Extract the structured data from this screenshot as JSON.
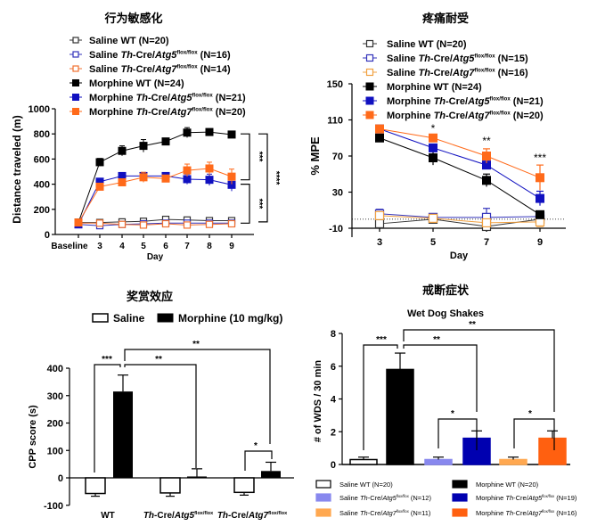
{
  "chart_data": [
    {
      "id": "locomotor",
      "type": "line",
      "title": "行为敏感化",
      "xlabel": "Day",
      "ylabel": "Distance traveled (m)",
      "ylim": [
        0,
        1000
      ],
      "yticks": [
        0,
        200,
        400,
        600,
        800,
        1000
      ],
      "categories": [
        "Baseline",
        "3",
        "4",
        "5",
        "6",
        "7",
        "8",
        "9"
      ],
      "legend_position": "top",
      "series": [
        {
          "name": "Saline WT (N=20)",
          "label_parts": [
            "Saline WT",
            "",
            "",
            "",
            " (N=20)"
          ],
          "color": "#333333",
          "filled": false,
          "values": [
            95,
            95,
            100,
            105,
            120,
            115,
            110,
            110
          ],
          "errors": [
            5,
            5,
            5,
            5,
            6,
            5,
            5,
            5
          ]
        },
        {
          "name": "Saline Th-Cre/Atg5flox/flox (N=16)",
          "label_parts": [
            "Saline ",
            "Th",
            "-Cre/",
            "Atg5",
            " (N=16)"
          ],
          "sup": "flox/flox",
          "color": "#3333bb",
          "filled": false,
          "values": [
            80,
            70,
            80,
            85,
            90,
            90,
            90,
            90
          ],
          "errors": [
            5,
            5,
            5,
            5,
            5,
            5,
            5,
            5
          ]
        },
        {
          "name": "Saline Th-Cre/Atg7flox/flox (N=14)",
          "label_parts": [
            "Saline ",
            "Th",
            "-Cre/",
            "Atg7",
            " (N=14)"
          ],
          "sup": "flox/flox",
          "color": "#f07030",
          "filled": false,
          "values": [
            90,
            90,
            80,
            75,
            85,
            75,
            80,
            85
          ],
          "errors": [
            5,
            5,
            5,
            5,
            5,
            5,
            5,
            5
          ]
        },
        {
          "name": "Morphine WT (N=24)",
          "label_parts": [
            "Morphine WT",
            "",
            "",
            "",
            " (N=24)"
          ],
          "color": "#000000",
          "filled": true,
          "values": [
            95,
            575,
            665,
            705,
            740,
            810,
            815,
            795
          ],
          "errors": [
            8,
            30,
            40,
            50,
            25,
            40,
            25,
            20
          ]
        },
        {
          "name": "Morphine Th-Cre/Atg5flox/flox (N=21)",
          "label_parts": [
            "Morphine ",
            "Th",
            "-Cre/",
            "Atg5",
            " (N=21)"
          ],
          "sup": "flox/flox",
          "color": "#1010c0",
          "filled": true,
          "values": [
            80,
            420,
            465,
            465,
            465,
            440,
            435,
            395
          ],
          "errors": [
            5,
            20,
            20,
            25,
            25,
            40,
            45,
            50
          ]
        },
        {
          "name": "Morphine Th-Cre/Atg7flox/flox (N=20)",
          "label_parts": [
            "Morphine ",
            "Th",
            "-Cre/",
            "Atg7",
            " (N=20)"
          ],
          "sup": "flox/flox",
          "color": "#ff6a1a",
          "filled": true,
          "values": [
            95,
            380,
            415,
            455,
            445,
            510,
            525,
            460
          ],
          "errors": [
            5,
            20,
            20,
            40,
            20,
            50,
            50,
            60
          ]
        }
      ],
      "annotations": [
        {
          "text": "***",
          "between": [
            "Morphine WT",
            "Morphine Th-Cre/Atg7"
          ]
        },
        {
          "text": "***",
          "between": [
            "Morphine Th-Cre/Atg5",
            "Saline"
          ]
        },
        {
          "text": "****",
          "between": [
            "Morphine WT",
            "Saline"
          ]
        }
      ]
    },
    {
      "id": "tolerance",
      "type": "line",
      "title": "疼痛耐受",
      "xlabel": "Day",
      "ylabel": "% MPE",
      "ylim": [
        -10,
        150
      ],
      "yticks": [
        -10,
        30,
        70,
        110,
        150
      ],
      "categories": [
        "3",
        "5",
        "7",
        "9"
      ],
      "legend_position": "top",
      "reference_line": 0,
      "series": [
        {
          "name": "Saline WT (N=20)",
          "label_parts": [
            "Saline WT",
            "",
            "",
            "",
            " (N=20)"
          ],
          "color": "#333333",
          "filled": false,
          "values": [
            -5,
            0,
            -8,
            0
          ],
          "errors": [
            4,
            3,
            3,
            3
          ]
        },
        {
          "name": "Saline Th-Cre/Atg5flox/flox (N=15)",
          "label_parts": [
            "Saline ",
            "Th",
            "-Cre/",
            "Atg5",
            " (N=15)"
          ],
          "sup": "flox/flox",
          "color": "#3333bb",
          "filled": false,
          "values": [
            6,
            2,
            2,
            3
          ],
          "errors": [
            5,
            4,
            10,
            3
          ]
        },
        {
          "name": "Saline Th-Cre/Atg7flox/flox (N=16)",
          "label_parts": [
            "Saline ",
            "Th",
            "-Cre/",
            "Atg7",
            " (N=16)"
          ],
          "sup": "flox/flox",
          "color": "#f0a040",
          "filled": false,
          "values": [
            4,
            1,
            -4,
            -3
          ],
          "errors": [
            4,
            3,
            4,
            5
          ]
        },
        {
          "name": "Morphine WT (N=24)",
          "label_parts": [
            "Morphine WT",
            "",
            "",
            "",
            " (N=24)"
          ],
          "color": "#000000",
          "filled": true,
          "values": [
            90,
            68,
            43,
            5
          ],
          "errors": [
            4,
            8,
            7,
            3
          ]
        },
        {
          "name": "Morphine Th-Cre/Atg5flox/flox (N=21)",
          "label_parts": [
            "Morphine ",
            "Th",
            "-Cre/",
            "Atg5",
            " (N=21)"
          ],
          "sup": "flox/flox",
          "color": "#1010c0",
          "filled": true,
          "values": [
            100,
            79,
            60,
            23
          ],
          "errors": [
            3,
            4,
            4,
            8
          ]
        },
        {
          "name": "Morphine Th-Cre/Atg7flox/flox (N=20)",
          "label_parts": [
            "Morphine ",
            "Th",
            "-Cre/",
            "Atg7",
            " (N=20)"
          ],
          "sup": "flox/flox",
          "color": "#ff6a1a",
          "filled": true,
          "values": [
            100,
            90,
            70,
            46
          ],
          "errors": [
            3,
            4,
            8,
            14
          ]
        }
      ],
      "annotations": [
        {
          "text": "*",
          "x": "5"
        },
        {
          "text": "**",
          "x": "7"
        },
        {
          "text": "***",
          "x": "9"
        }
      ]
    },
    {
      "id": "cpp",
      "type": "bar",
      "title": "奖赏效应",
      "ylabel": "CPP score (s)",
      "ylim": [
        -100,
        400
      ],
      "yticks": [
        -100,
        0,
        100,
        200,
        300,
        400
      ],
      "legend": [
        {
          "label": "Saline",
          "color": "#ffffff"
        },
        {
          "label": "Morphine (10 mg/kg)",
          "color": "#000000"
        }
      ],
      "legend_position": "top",
      "groups": [
        {
          "label_parts": [
            "WT",
            "",
            "",
            ""
          ],
          "saline": -57,
          "saline_err": 10,
          "morphine": 315,
          "morphine_err": 60
        },
        {
          "label_parts": [
            "",
            "Th",
            "-Cre/",
            "Atg5"
          ],
          "sup": "flox/flox",
          "saline": -55,
          "saline_err": 12,
          "morphine": 5,
          "morphine_err": 28
        },
        {
          "label_parts": [
            "",
            "Th",
            "-Cre/",
            "Atg7"
          ],
          "sup": "flox/flox",
          "saline": -53,
          "saline_err": 10,
          "morphine": 25,
          "morphine_err": 32
        }
      ],
      "annotations": [
        {
          "text": "***",
          "between": [
            "WT Saline",
            "WT Morphine"
          ]
        },
        {
          "text": "**",
          "between": [
            "WT Morphine",
            "Atg5 Morphine"
          ]
        },
        {
          "text": "**",
          "between": [
            "WT Morphine",
            "Atg7 Morphine"
          ]
        },
        {
          "text": "*",
          "between": [
            "Atg7 Saline",
            "Atg7 Morphine"
          ]
        }
      ]
    },
    {
      "id": "withdrawal",
      "type": "bar",
      "title": "戒断症状",
      "subtitle": "Wet Dog Shakes",
      "ylabel": "# of WDS / 30 min",
      "ylim": [
        0,
        8
      ],
      "yticks": [
        0,
        2,
        4,
        6,
        8
      ],
      "legend_position": "bottom",
      "bars": [
        {
          "name": "Saline WT (N=20)",
          "label_parts": [
            "Saline WT",
            "",
            "",
            "",
            " (N=20)"
          ],
          "color": "#ffffff",
          "value": 0.3,
          "error": 0.15
        },
        {
          "name": "Morphine WT (N=20)",
          "label_parts": [
            "Morphine WT",
            "",
            "",
            "",
            " (N=20)"
          ],
          "color": "#000000",
          "value": 5.8,
          "error": 1.0
        },
        {
          "name": "Saline Th-Cre/Atg5flox/flox (N=12)",
          "label_parts": [
            "Saline ",
            "Th",
            "-Cre/",
            "Atg5",
            " (N=12)"
          ],
          "sup": "flox/flox",
          "color": "#8888ee",
          "value": 0.3,
          "error": 0.15
        },
        {
          "name": "Morphine Th-Cre/Atg5flox/flox (N=19)",
          "label_parts": [
            "Morphine ",
            "Th",
            "-Cre/",
            "Atg5",
            " (N=19)"
          ],
          "sup": "flox/flox",
          "color": "#0000b0",
          "value": 1.6,
          "error": 0.45
        },
        {
          "name": "Saline Th-Cre/Atg7flox/flox (N=11)",
          "label_parts": [
            "Saline ",
            "Th",
            "-Cre/",
            "Atg7",
            " (N=11)"
          ],
          "sup": "flox/flox",
          "color": "#ffa850",
          "value": 0.3,
          "error": 0.15
        },
        {
          "name": "Morphine Th-Cre/Atg7flox/flox (N=16)",
          "label_parts": [
            "Morphine ",
            "Th",
            "-Cre/",
            "Atg7",
            " (N=16)"
          ],
          "sup": "flox/flox",
          "color": "#ff6010",
          "value": 1.6,
          "error": 0.45
        }
      ],
      "annotations": [
        {
          "text": "***",
          "between": [
            "Saline WT",
            "Morphine WT"
          ]
        },
        {
          "text": "**",
          "between": [
            "Morphine WT",
            "Morphine Atg5"
          ]
        },
        {
          "text": "**",
          "between": [
            "Morphine WT",
            "Morphine Atg7"
          ]
        },
        {
          "text": "*",
          "between": [
            "Saline Atg5",
            "Morphine Atg5"
          ]
        },
        {
          "text": "*",
          "between": [
            "Saline Atg7",
            "Morphine Atg7"
          ]
        }
      ]
    }
  ]
}
